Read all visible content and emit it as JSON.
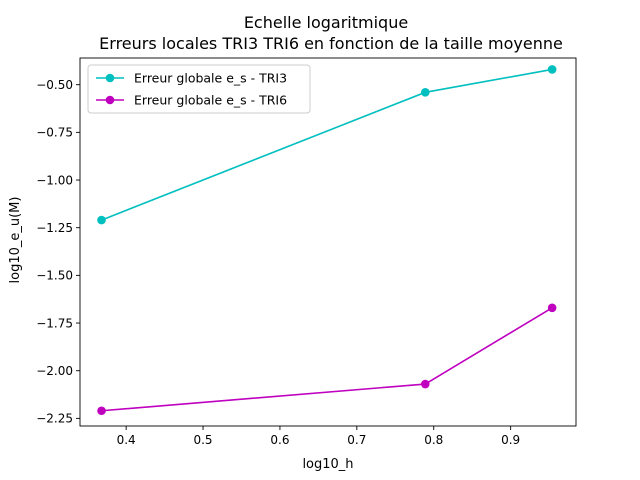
{
  "chart_data": {
    "type": "line",
    "title_line1": "Echelle logaritmique",
    "title_line2": "Erreurs locales TRI3 TRI6 en fonction de la taille moyenne",
    "xlabel": "log10_h",
    "ylabel": "log10_e_u(M)",
    "xlim": [
      0.34,
      0.985
    ],
    "ylim": [
      -2.29,
      -0.36
    ],
    "xticks": [
      0.4,
      0.5,
      0.6,
      0.7,
      0.8,
      0.9
    ],
    "xtick_labels": [
      "0.4",
      "0.5",
      "0.6",
      "0.7",
      "0.8",
      "0.9"
    ],
    "yticks": [
      -0.5,
      -0.75,
      -1.0,
      -1.25,
      -1.5,
      -1.75,
      -2.0,
      -2.25
    ],
    "ytick_labels": [
      "−0.50",
      "−0.75",
      "−1.00",
      "−1.25",
      "−1.50",
      "−1.75",
      "−2.00",
      "−2.25"
    ],
    "grid": false,
    "legend_position": "top-left",
    "series": [
      {
        "name": "Erreur globale e_s - TRI3",
        "color": "#00bfbf",
        "x": [
          0.368,
          0.789,
          0.954
        ],
        "y": [
          -1.21,
          -0.54,
          -0.42
        ]
      },
      {
        "name": "Erreur globale e_s - TRI6",
        "color": "#bf00bf",
        "x": [
          0.368,
          0.789,
          0.954
        ],
        "y": [
          -2.21,
          -2.07,
          -1.67
        ]
      }
    ]
  }
}
